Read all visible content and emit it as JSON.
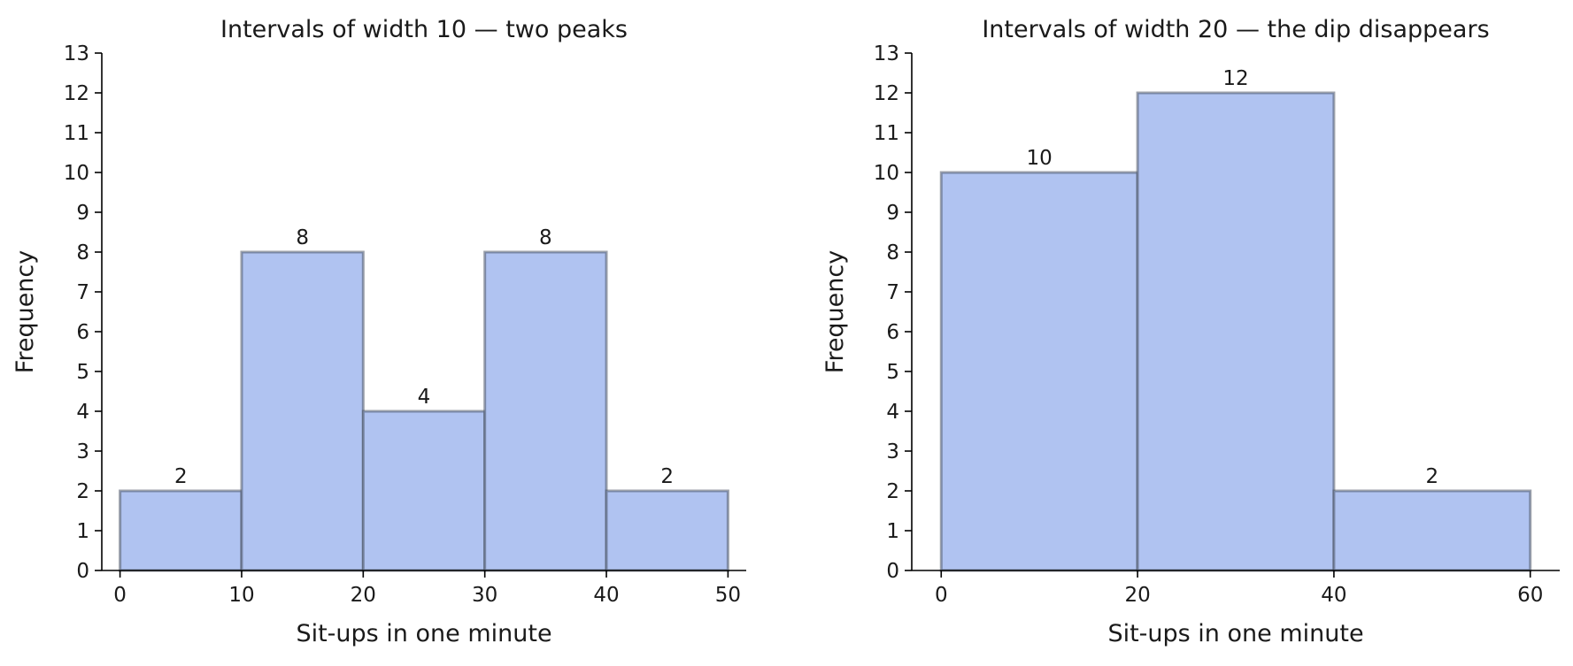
{
  "chart_data": [
    {
      "type": "bar",
      "title": "Intervals of width 10 — two peaks",
      "xlabel": "Sit-ups in one minute",
      "ylabel": "Frequency",
      "bins": [
        [
          0,
          10
        ],
        [
          10,
          20
        ],
        [
          20,
          30
        ],
        [
          30,
          40
        ],
        [
          40,
          50
        ]
      ],
      "values": [
        2,
        8,
        4,
        8,
        2
      ],
      "xticks": [
        0,
        10,
        20,
        30,
        40,
        50
      ],
      "yticks": [
        0,
        1,
        2,
        3,
        4,
        5,
        6,
        7,
        8,
        9,
        10,
        11,
        12,
        13
      ],
      "xlim": [
        -1.5,
        51.5
      ],
      "ylim": [
        0,
        13
      ],
      "grid": false,
      "bar_color": "#b0c3f1",
      "edge_color": "#4c5566"
    },
    {
      "type": "bar",
      "title": "Intervals of width 20 — the dip disappears",
      "xlabel": "Sit-ups in one minute",
      "ylabel": "Frequency",
      "bins": [
        [
          0,
          20
        ],
        [
          20,
          40
        ],
        [
          40,
          60
        ]
      ],
      "values": [
        10,
        12,
        2
      ],
      "xticks": [
        0,
        20,
        40,
        60
      ],
      "yticks": [
        0,
        1,
        2,
        3,
        4,
        5,
        6,
        7,
        8,
        9,
        10,
        11,
        12,
        13
      ],
      "xlim": [
        -3,
        63
      ],
      "ylim": [
        0,
        13
      ],
      "grid": false,
      "bar_color": "#b0c3f1",
      "edge_color": "#4c5566"
    }
  ]
}
